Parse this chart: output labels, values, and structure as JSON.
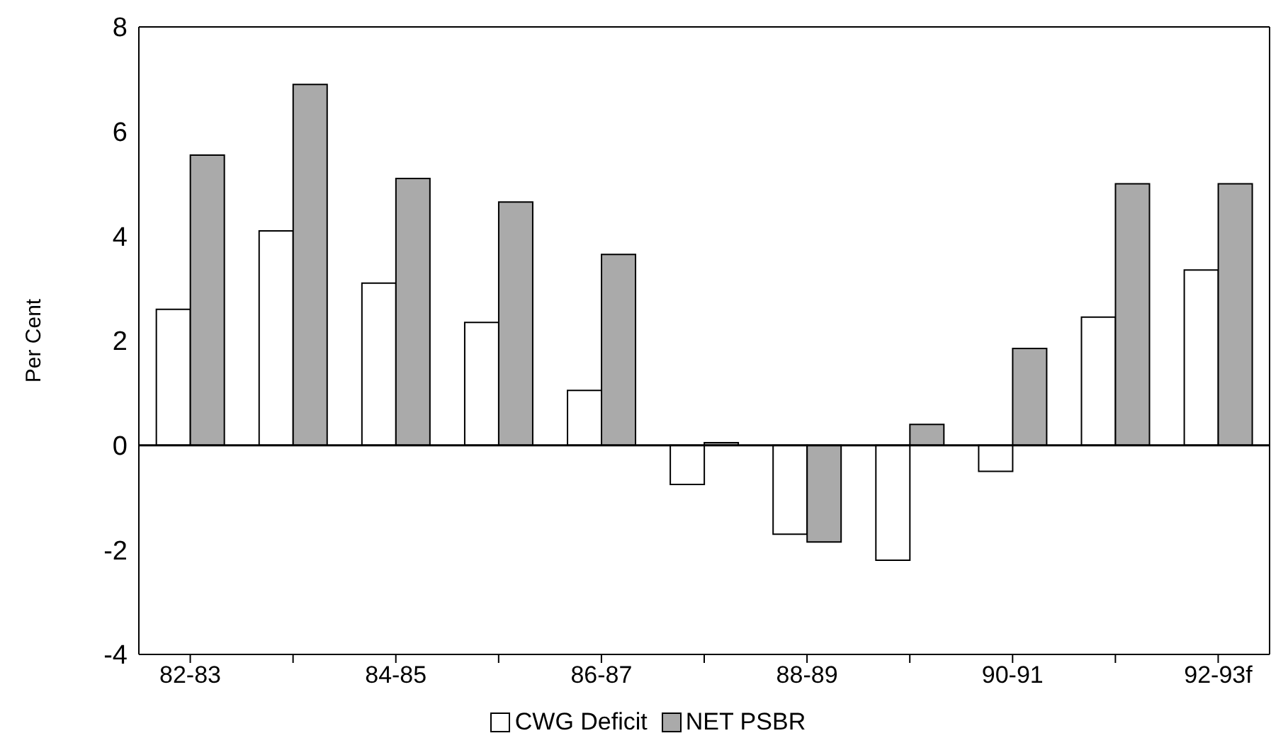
{
  "chart_data": {
    "type": "bar",
    "ylabel": "Per Cent",
    "categories": [
      "82-83",
      null,
      "84-85",
      null,
      "86-87",
      null,
      "88-89",
      null,
      "90-91",
      null,
      "92-93f"
    ],
    "series": [
      {
        "name": "CWG Deficit",
        "color": "#ffffff",
        "values": [
          2.6,
          4.1,
          3.1,
          2.35,
          1.05,
          -0.75,
          -1.7,
          -2.2,
          -0.5,
          2.45,
          3.35
        ]
      },
      {
        "name": "NET PSBR",
        "color": "#aaaaaa",
        "values": [
          5.55,
          6.9,
          5.1,
          4.65,
          3.65,
          0.05,
          -1.85,
          0.4,
          1.85,
          5.0,
          5.0
        ]
      }
    ],
    "ylim": [
      -4,
      8
    ],
    "yticks": [
      -4,
      -2,
      0,
      2,
      4,
      6,
      8
    ],
    "grid": false,
    "legend": "bottom",
    "ref_lines": [
      {
        "axis": "y",
        "value": 0,
        "color": "#000000"
      }
    ]
  }
}
